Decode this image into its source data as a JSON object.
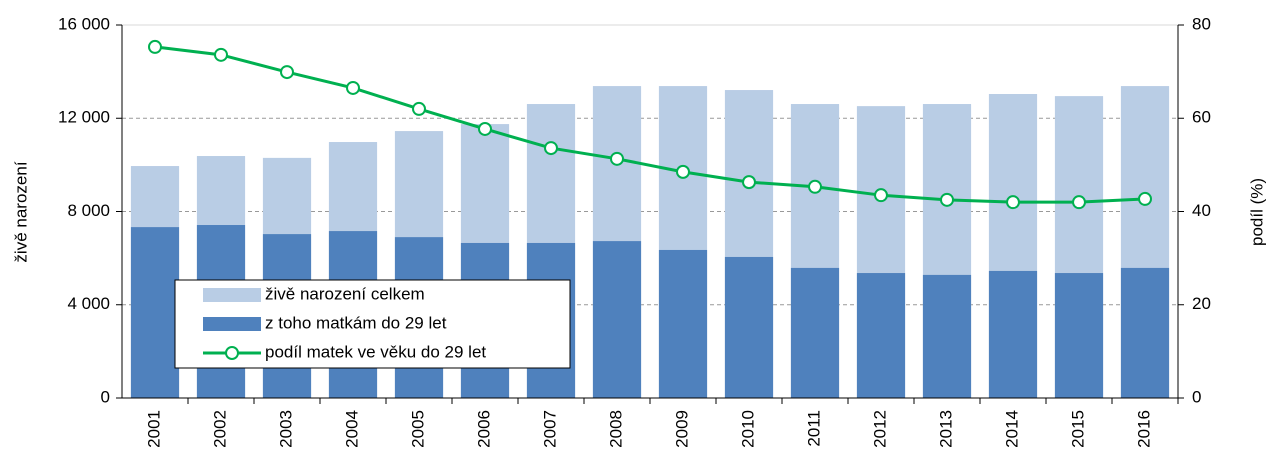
{
  "chart_data": {
    "type": "bar",
    "categories": [
      "2001",
      "2002",
      "2003",
      "2004",
      "2005",
      "2006",
      "2007",
      "2008",
      "2009",
      "2010",
      "2011",
      "2012",
      "2013",
      "2014",
      "2015",
      "2016"
    ],
    "series": [
      {
        "name": "živě narození celkem",
        "color": "#b9cde5",
        "values": [
          9950,
          10380,
          10300,
          10980,
          11450,
          11750,
          12610,
          13380,
          13380,
          13210,
          12610,
          12520,
          12610,
          13040,
          12950,
          13380
        ]
      },
      {
        "name": "z toho matkám do 29 let",
        "color": "#4f81bd",
        "values": [
          7330,
          7420,
          7030,
          7160,
          6900,
          6650,
          6650,
          6730,
          6350,
          6050,
          5580,
          5360,
          5280,
          5450,
          5360,
          5580
        ]
      },
      {
        "name": "podíl matek ve věku do 29 let",
        "color": "#00b050",
        "type": "line",
        "axis": "y2",
        "values": [
          75.3,
          73.6,
          69.9,
          66.5,
          62.0,
          57.7,
          53.6,
          51.3,
          48.5,
          46.3,
          45.3,
          43.5,
          42.5,
          42.0,
          42.0,
          42.7
        ]
      }
    ],
    "ylabel": "živě narození",
    "y2label": "podíl (%)",
    "ylim": [
      0,
      16000
    ],
    "yticks": [
      0,
      {
        "value": 4000,
        "label": "4 000"
      },
      {
        "value": 8000,
        "label": "8 000"
      },
      {
        "value": 12000,
        "label": "12 000"
      },
      {
        "value": 16000,
        "label": "16 000"
      }
    ],
    "y2lim": [
      0,
      80
    ],
    "y2ticks": [
      0,
      20,
      40,
      60,
      80
    ],
    "grid": true,
    "legend": "lower left"
  }
}
